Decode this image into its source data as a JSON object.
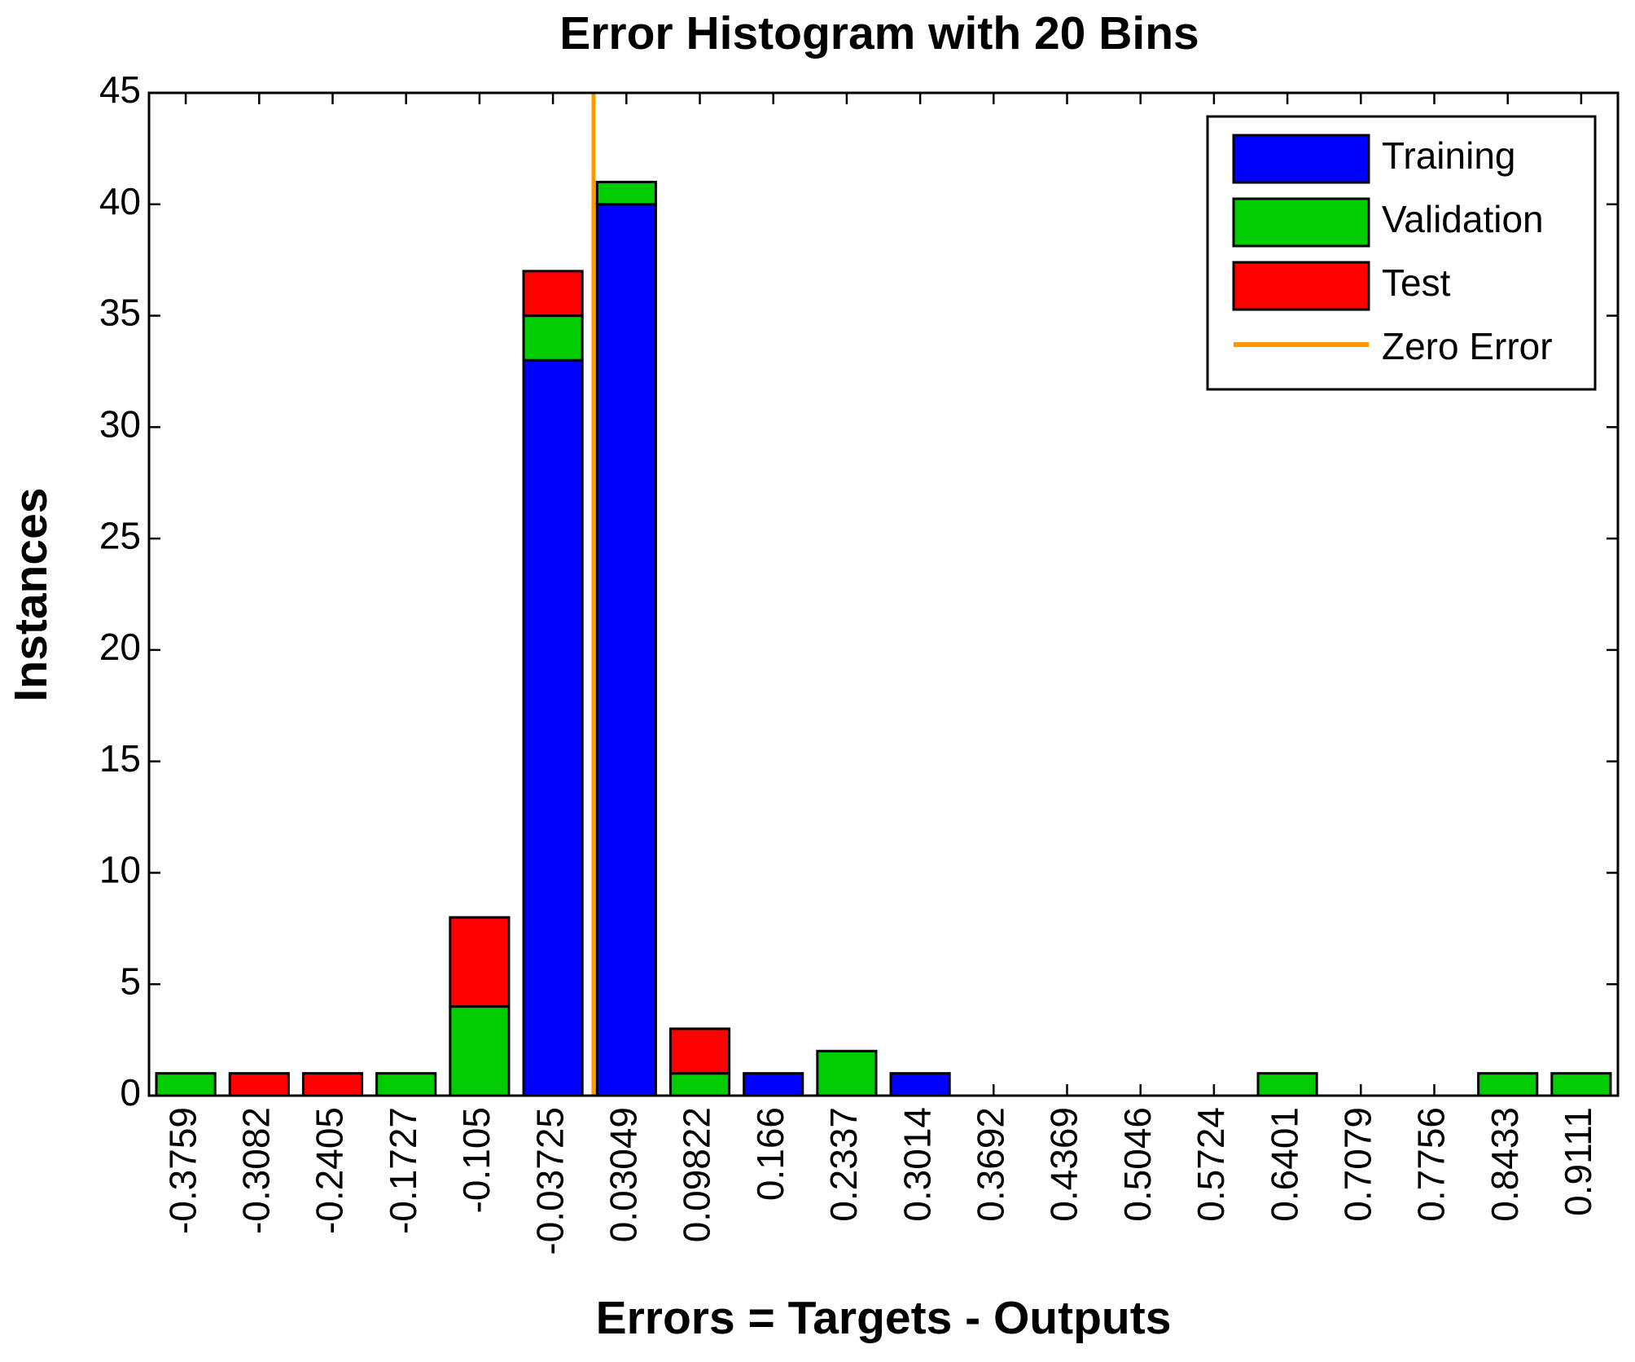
{
  "chart_data": {
    "type": "bar",
    "stacked": true,
    "title": "Error Histogram with 20 Bins",
    "x_label": "Errors = Targets - Outputs",
    "y_label": "Instances",
    "categories": [
      "-0.3759",
      "-0.3082",
      "-0.2405",
      "-0.1727",
      "-0.105",
      "-0.03725",
      "0.03049",
      "0.09822",
      "0.166",
      "0.2337",
      "0.3014",
      "0.3692",
      "0.4369",
      "0.5046",
      "0.5724",
      "0.6401",
      "0.7079",
      "0.7756",
      "0.8433",
      "0.9111"
    ],
    "series": [
      {
        "name": "Training",
        "color": "#0000ff",
        "values": [
          0,
          0,
          0,
          0,
          0,
          33,
          40,
          0,
          1,
          0,
          1,
          0,
          0,
          0,
          0,
          0,
          0,
          0,
          0,
          0
        ]
      },
      {
        "name": "Validation",
        "color": "#00cc00",
        "values": [
          1,
          0,
          0,
          1,
          4,
          2,
          1,
          1,
          0,
          2,
          0,
          0,
          0,
          0,
          0,
          1,
          0,
          0,
          1,
          1
        ]
      },
      {
        "name": "Test",
        "color": "#ff0000",
        "values": [
          0,
          1,
          1,
          0,
          4,
          2,
          0,
          2,
          0,
          0,
          0,
          0,
          0,
          0,
          0,
          0,
          0,
          0,
          0,
          0
        ]
      }
    ],
    "zero_line": {
      "name": "Zero Error",
      "color": "#ff9900",
      "value": 0
    },
    "ylim": [
      0,
      45
    ],
    "yticks": [
      0,
      5,
      10,
      15,
      20,
      25,
      30,
      35,
      40,
      45
    ],
    "legend": "upper right"
  }
}
